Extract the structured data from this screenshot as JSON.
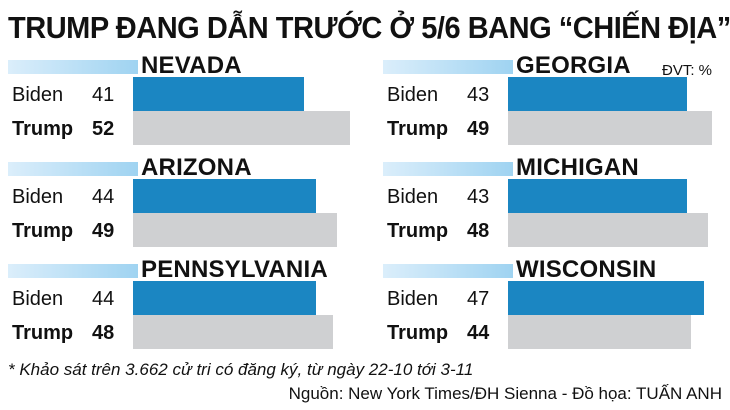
{
  "header": {
    "title": "TRUMP ĐANG DẪN TRƯỚC Ở 5/6 BANG “CHIẾN ĐỊA”",
    "unit": "ĐVT: %"
  },
  "chart_data": {
    "type": "bar",
    "orientation": "horizontal",
    "title": "TRUMP ĐANG DẪN TRƯỚC Ở 5/6 BANG “CHIẾN ĐỊA”",
    "unit": "ĐVT: %",
    "xlim": [
      0,
      54
    ],
    "colors": {
      "Biden": "#1b86c2",
      "Trump": "#cfd0d2"
    },
    "panels": [
      {
        "state": "NEVADA",
        "bars": [
          {
            "name": "Biden",
            "value": 41
          },
          {
            "name": "Trump",
            "value": 52
          }
        ]
      },
      {
        "state": "GEORGIA",
        "bars": [
          {
            "name": "Biden",
            "value": 43
          },
          {
            "name": "Trump",
            "value": 49
          }
        ]
      },
      {
        "state": "ARIZONA",
        "bars": [
          {
            "name": "Biden",
            "value": 44
          },
          {
            "name": "Trump",
            "value": 49
          }
        ]
      },
      {
        "state": "MICHIGAN",
        "bars": [
          {
            "name": "Biden",
            "value": 43
          },
          {
            "name": "Trump",
            "value": 48
          }
        ]
      },
      {
        "state": "PENNSYLVANIA",
        "bars": [
          {
            "name": "Biden",
            "value": 44
          },
          {
            "name": "Trump",
            "value": 48
          }
        ]
      },
      {
        "state": "WISCONSIN",
        "bars": [
          {
            "name": "Biden",
            "value": 47
          },
          {
            "name": "Trump",
            "value": 44
          }
        ]
      }
    ]
  },
  "footer": {
    "note": "* Khảo sát trên 3.662 cử tri có đăng ký, từ ngày 22-10 tới 3-11",
    "source": "Nguồn: New York Times/ĐH Sienna - Đồ họa: TUẤN ANH"
  }
}
